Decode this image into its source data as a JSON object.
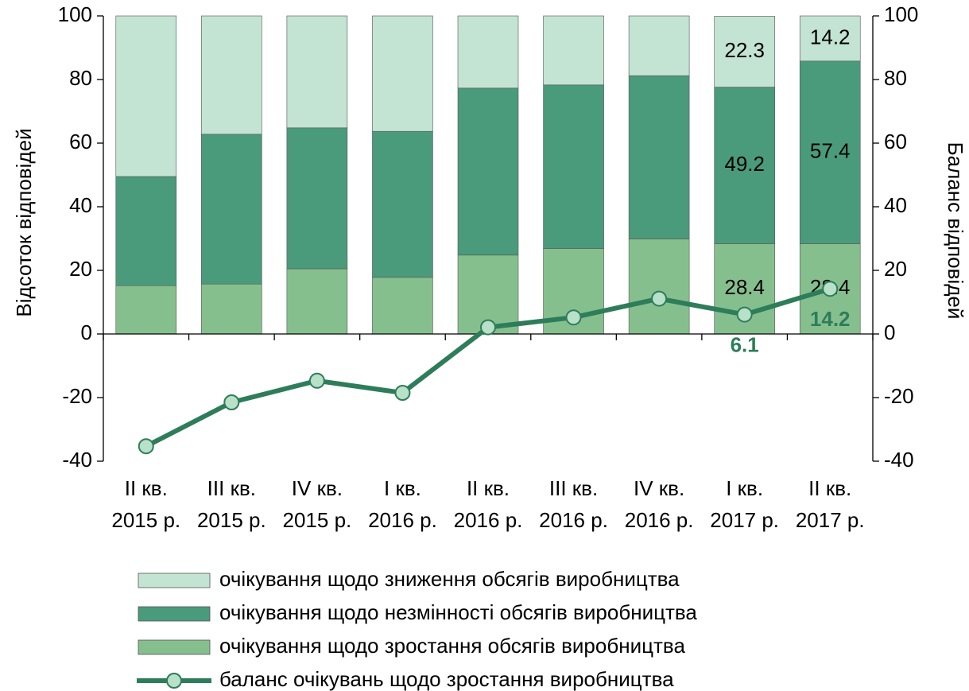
{
  "chart_data": {
    "type": "stacked_bar_line",
    "ylabel": "Відсоток відповідей",
    "y2label": "Баланс відповідей",
    "categories": [
      [
        "II кв.",
        "2015 р."
      ],
      [
        "III кв.",
        "2015 р."
      ],
      [
        "IV кв.",
        "2015 р."
      ],
      [
        "I кв.",
        "2016 р."
      ],
      [
        "II кв.",
        "2016 р."
      ],
      [
        "III кв.",
        "2016 р."
      ],
      [
        "IV кв.",
        "2016 р."
      ],
      [
        "I кв.",
        "2017 р."
      ],
      [
        "II кв.",
        "2017 р."
      ]
    ],
    "ylim": [
      -40,
      100
    ],
    "yticks": [
      -40,
      -20,
      0,
      20,
      40,
      60,
      80,
      100
    ],
    "y2lim": [
      -40,
      100
    ],
    "y2ticks": [
      -40,
      -20,
      0,
      20,
      40,
      60,
      80,
      100
    ],
    "series": [
      {
        "name": "очікування щодо зростання обсягів виробництва",
        "color": "#86bf8e",
        "values": [
          15.2,
          15.7,
          20.5,
          17.8,
          24.8,
          26.9,
          29.9,
          28.4,
          28.4
        ],
        "value_labels": [
          null,
          null,
          null,
          null,
          null,
          null,
          null,
          "28.4",
          "28.4"
        ]
      },
      {
        "name": "очікування щодо незмінності обсягів виробництва",
        "color": "#4a9a7c",
        "values": [
          34.3,
          47.1,
          44.3,
          45.9,
          52.5,
          51.4,
          51.3,
          49.2,
          57.4
        ],
        "value_labels": [
          null,
          null,
          null,
          null,
          null,
          null,
          null,
          "49.2",
          "57.4"
        ]
      },
      {
        "name": "очікування щодо зниження обсягів виробництва",
        "color": "#c3e3d3",
        "values": [
          50.5,
          37.2,
          35.2,
          36.3,
          22.7,
          21.7,
          18.8,
          22.3,
          14.2
        ],
        "value_labels": [
          null,
          null,
          null,
          null,
          null,
          null,
          null,
          "22.3",
          "14.2"
        ]
      },
      {
        "name": "баланс очікувань щодо зростання виробництва",
        "color": "#2e7d5a",
        "marker_color": "#b9e0c8",
        "axis": "y2",
        "type": "line",
        "values": [
          -35.3,
          -21.5,
          -14.7,
          -18.5,
          2.1,
          5.2,
          11.1,
          6.1,
          14.2
        ],
        "value_labels": [
          null,
          null,
          null,
          null,
          null,
          null,
          null,
          "6.1",
          "14.2"
        ]
      }
    ]
  }
}
